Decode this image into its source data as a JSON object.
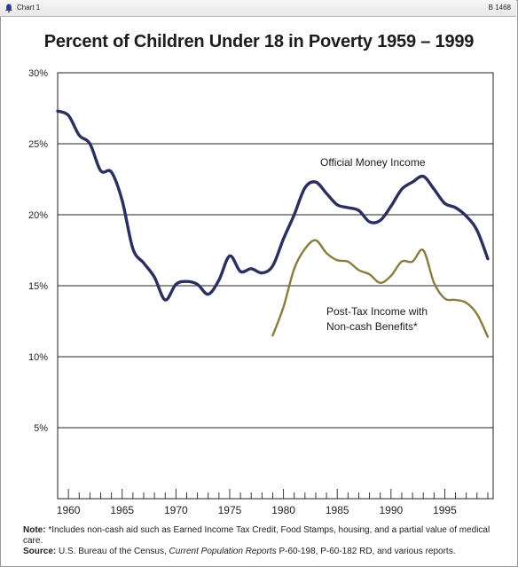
{
  "header": {
    "label": "Chart 1",
    "code": "B 1468"
  },
  "chart_data": {
    "type": "line",
    "title": "Percent of Children Under 18 in Poverty 1959 – 1999",
    "xlabel": "",
    "ylabel": "",
    "xlim": [
      1959,
      1999.5
    ],
    "ylim": [
      0,
      30
    ],
    "grid": true,
    "x_ticks": [
      "1960",
      "1965",
      "1970",
      "1975",
      "1980",
      "1985",
      "1990",
      "1995"
    ],
    "y_ticks": [
      "30%",
      "25%",
      "20%",
      "15%",
      "10%",
      "5%"
    ],
    "series": [
      {
        "name": "Official Money Income",
        "color": "#2a2f5e",
        "x": [
          1959,
          1960,
          1961,
          1962,
          1963,
          1964,
          1965,
          1966,
          1967,
          1968,
          1969,
          1970,
          1971,
          1972,
          1973,
          1974,
          1975,
          1976,
          1977,
          1978,
          1979,
          1980,
          1981,
          1982,
          1983,
          1984,
          1985,
          1986,
          1987,
          1988,
          1989,
          1990,
          1991,
          1992,
          1993,
          1994,
          1995,
          1996,
          1997,
          1998,
          1999
        ],
        "y": [
          27.3,
          27.0,
          25.6,
          25.0,
          23.1,
          23.0,
          21.0,
          17.6,
          16.6,
          15.6,
          14.0,
          15.1,
          15.3,
          15.1,
          14.4,
          15.4,
          17.1,
          16.0,
          16.2,
          15.9,
          16.4,
          18.3,
          20.0,
          21.9,
          22.3,
          21.5,
          20.7,
          20.5,
          20.3,
          19.5,
          19.6,
          20.6,
          21.8,
          22.3,
          22.7,
          21.8,
          20.8,
          20.5,
          19.9,
          18.9,
          16.9
        ]
      },
      {
        "name": "Post-Tax Income with Non-cash Benefits*",
        "color": "#8a7b3e",
        "x": [
          1979,
          1980,
          1981,
          1982,
          1983,
          1984,
          1985,
          1986,
          1987,
          1988,
          1989,
          1990,
          1991,
          1992,
          1993,
          1994,
          1995,
          1996,
          1997,
          1998,
          1999
        ],
        "y": [
          11.5,
          13.5,
          16.2,
          17.6,
          18.2,
          17.3,
          16.8,
          16.7,
          16.1,
          15.8,
          15.2,
          15.7,
          16.7,
          16.7,
          17.5,
          15.2,
          14.1,
          14.0,
          13.8,
          13.0,
          11.4
        ]
      }
    ],
    "annotations": [
      {
        "text": "Official Money Income"
      },
      {
        "text": "Post-Tax Income with"
      },
      {
        "text": "Non-cash Benefits*"
      }
    ]
  },
  "notes": {
    "note_label": "Note:",
    "note_text": " *Includes non-cash aid such as Earned Income Tax Credit, Food Stamps, housing, and a partial value of medical care.",
    "source_label": "Source:",
    "source_pre": " U.S. Bureau of the Census, ",
    "source_italic": "Current Population Reports",
    "source_post": " P-60-198, P-60-182 RD, and various reports."
  },
  "colors": {
    "official": "#2a2f5e",
    "posttax": "#8a7b3e",
    "grid": "#222222"
  },
  "icons": {
    "topbar": "bell-icon"
  }
}
